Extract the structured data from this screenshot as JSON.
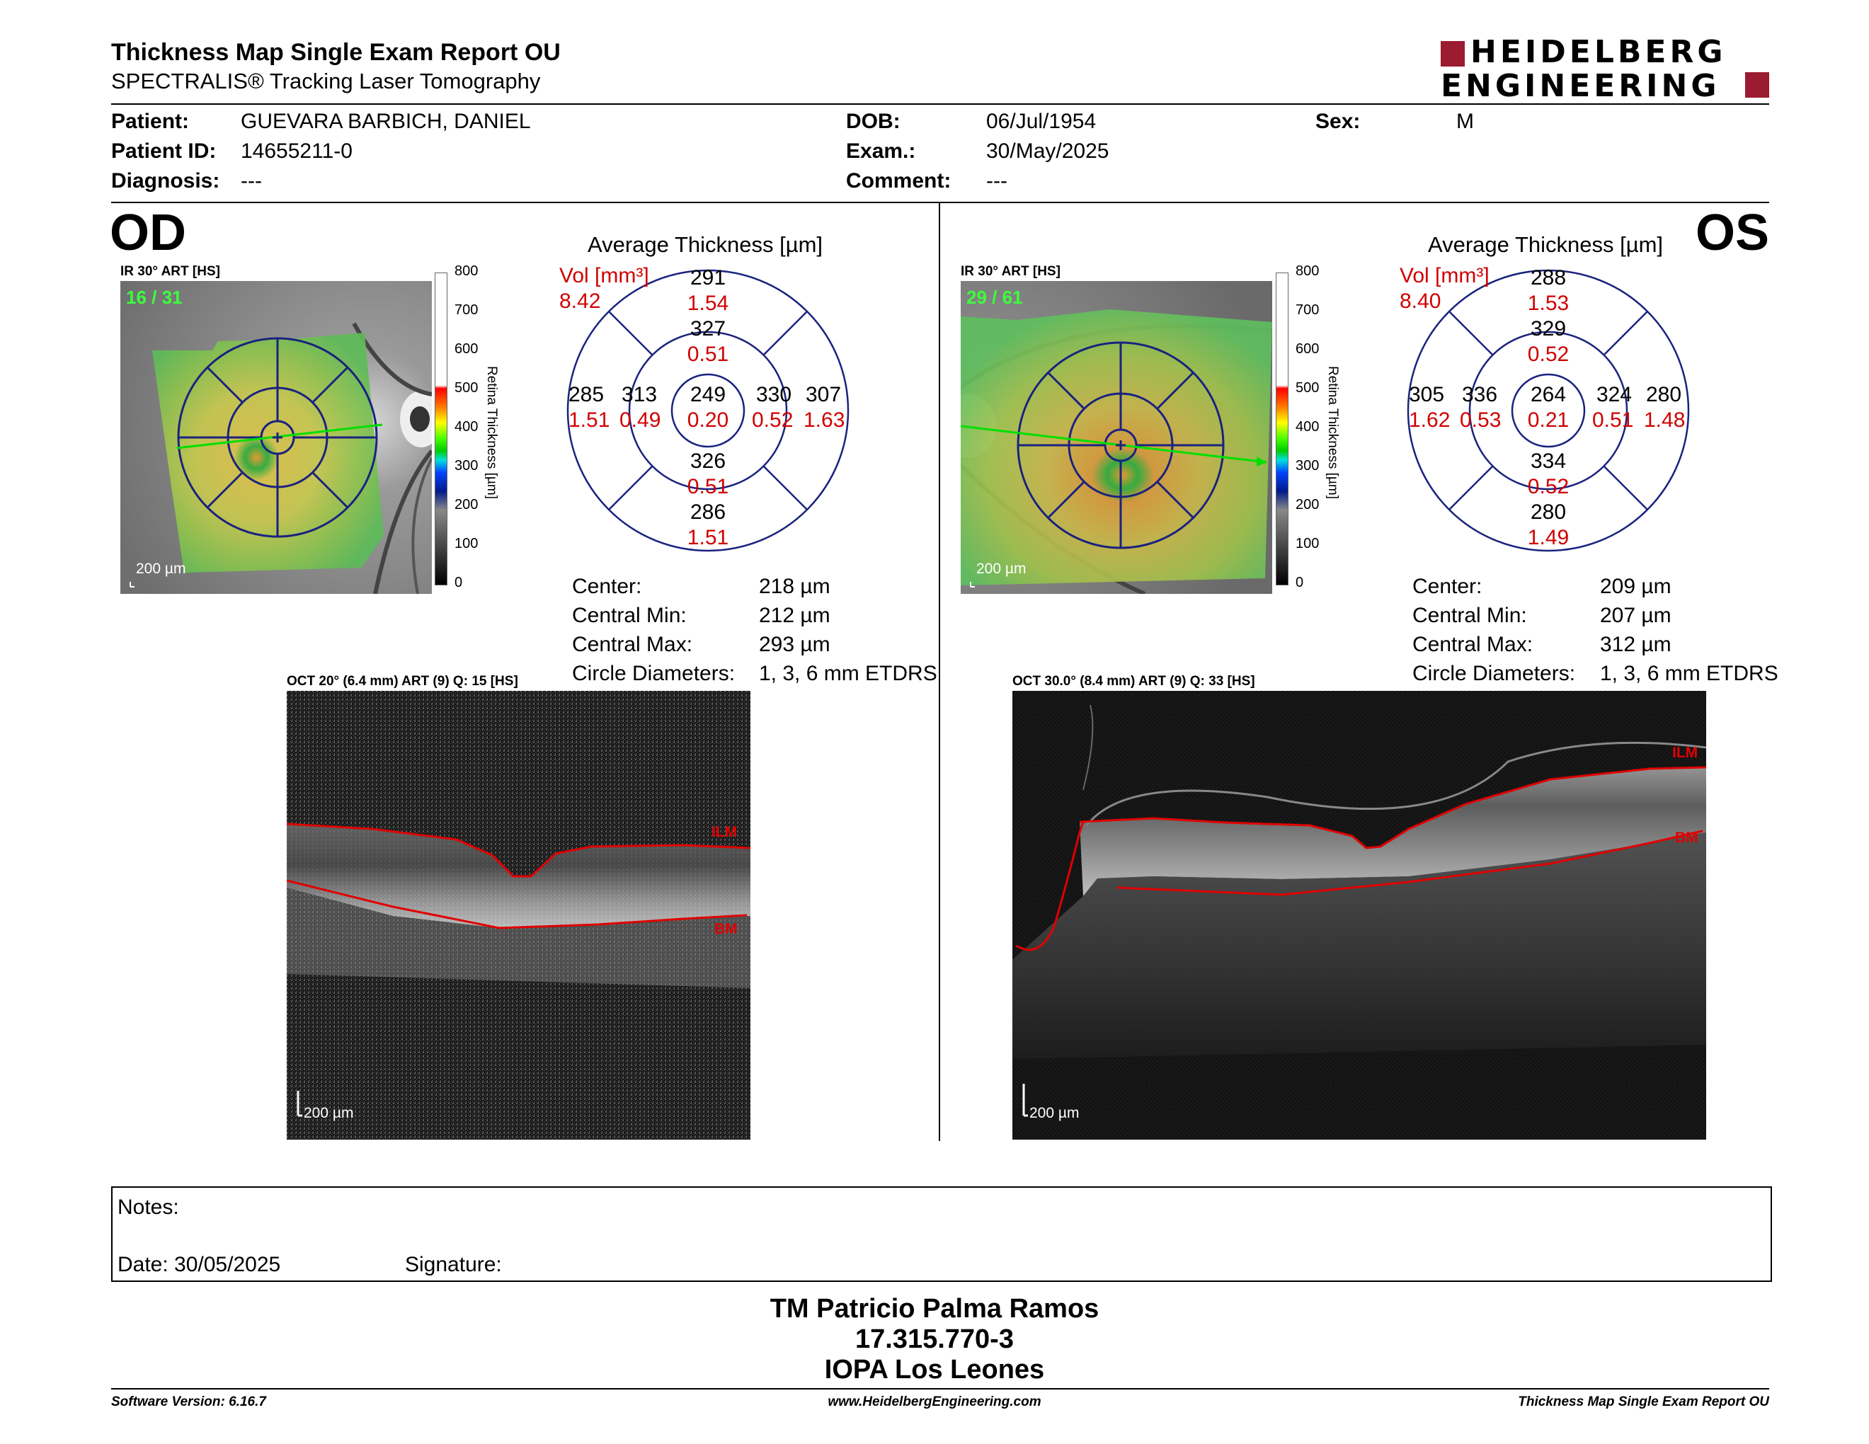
{
  "header": {
    "title": "Thickness Map Single Exam Report OU",
    "subtitle": "SPECTRALIS® Tracking Laser Tomography",
    "logo_line1": "HEIDELBERG",
    "logo_line2": "ENGINEERING"
  },
  "patient": {
    "patient_label": "Patient:",
    "patient_value": "GUEVARA BARBICH, DANIEL",
    "id_label": "Patient ID:",
    "id_value": "14655211-0",
    "diagnosis_label": "Diagnosis:",
    "diagnosis_value": "---",
    "dob_label": "DOB:",
    "dob_value": "06/Jul/1954",
    "exam_label": "Exam.:",
    "exam_value": "30/May/2025",
    "comment_label": "Comment:",
    "comment_value": "---",
    "sex_label": "Sex:",
    "sex_value": "M"
  },
  "od": {
    "eye": "OD",
    "ir_label": "IR 30° ART [HS]",
    "frame": "16 / 31",
    "scale": "200 µm",
    "avg_title": "Average Thickness [µm]",
    "vol_label": "Vol [mm³]",
    "vol_value": "8.42",
    "sectors": {
      "center_t": "249",
      "center_v": "0.20",
      "inner_sup_t": "327",
      "inner_sup_v": "0.51",
      "inner_inf_t": "326",
      "inner_inf_v": "0.51",
      "inner_left_t": "313",
      "inner_left_v": "0.49",
      "inner_right_t": "330",
      "inner_right_v": "0.52",
      "outer_sup_t": "291",
      "outer_sup_v": "1.54",
      "outer_inf_t": "286",
      "outer_inf_v": "1.51",
      "outer_left_t": "285",
      "outer_left_v": "1.51",
      "outer_right_t": "307",
      "outer_right_v": "1.63"
    },
    "stats": {
      "center_label": "Center:",
      "center_value": "218 µm",
      "min_label": "Central Min:",
      "min_value": "212 µm",
      "max_label": "Central Max:",
      "max_value": "293 µm",
      "diam_label": "Circle Diameters:",
      "diam_value": "1, 3, 6 mm ETDRS"
    },
    "oct_label": "OCT 20° (6.4 mm) ART (9) Q: 15 [HS]",
    "oct_scale": "200 µm",
    "ilm": "ILM",
    "bm": "BM"
  },
  "os": {
    "eye": "OS",
    "ir_label": "IR 30° ART [HS]",
    "frame": "29 / 61",
    "scale": "200 µm",
    "avg_title": "Average Thickness [µm]",
    "vol_label": "Vol [mm³]",
    "vol_value": "8.40",
    "sectors": {
      "center_t": "264",
      "center_v": "0.21",
      "inner_sup_t": "329",
      "inner_sup_v": "0.52",
      "inner_inf_t": "334",
      "inner_inf_v": "0.52",
      "inner_left_t": "336",
      "inner_left_v": "0.53",
      "inner_right_t": "324",
      "inner_right_v": "0.51",
      "outer_sup_t": "288",
      "outer_sup_v": "1.53",
      "outer_inf_t": "280",
      "outer_inf_v": "1.49",
      "outer_left_t": "305",
      "outer_left_v": "1.62",
      "outer_right_t": "280",
      "outer_right_v": "1.48"
    },
    "stats": {
      "center_label": "Center:",
      "center_value": "209 µm",
      "min_label": "Central Min:",
      "min_value": "207 µm",
      "max_label": "Central Max:",
      "max_value": "312 µm",
      "diam_label": "Circle Diameters:",
      "diam_value": "1, 3, 6 mm ETDRS"
    },
    "oct_label": "OCT 30.0° (8.4 mm) ART (9) Q: 33 [HS]",
    "oct_scale": "200 µm",
    "ilm": "ILM",
    "bm": "BM"
  },
  "colorbar": {
    "ticks": [
      "800",
      "700",
      "600",
      "500",
      "400",
      "300",
      "200",
      "100",
      "0"
    ],
    "title": "Retina Thickness [µm]"
  },
  "notes": {
    "notes_label": "Notes:",
    "date_label": "Date: 30/05/2025",
    "signature_label": "Signature:"
  },
  "signer": {
    "name": "TM Patricio Palma Ramos",
    "rut": "17.315.770-3",
    "place": "IOPA Los Leones"
  },
  "footer": {
    "software": "Software Version: 6.16.7",
    "website": "www.HeidelbergEngineering.com",
    "report": "Thickness Map Single Exam Report OU"
  },
  "colors": {
    "red": "#d00000",
    "grid_blue": "#1a237e",
    "brand": "#9b1b30"
  }
}
